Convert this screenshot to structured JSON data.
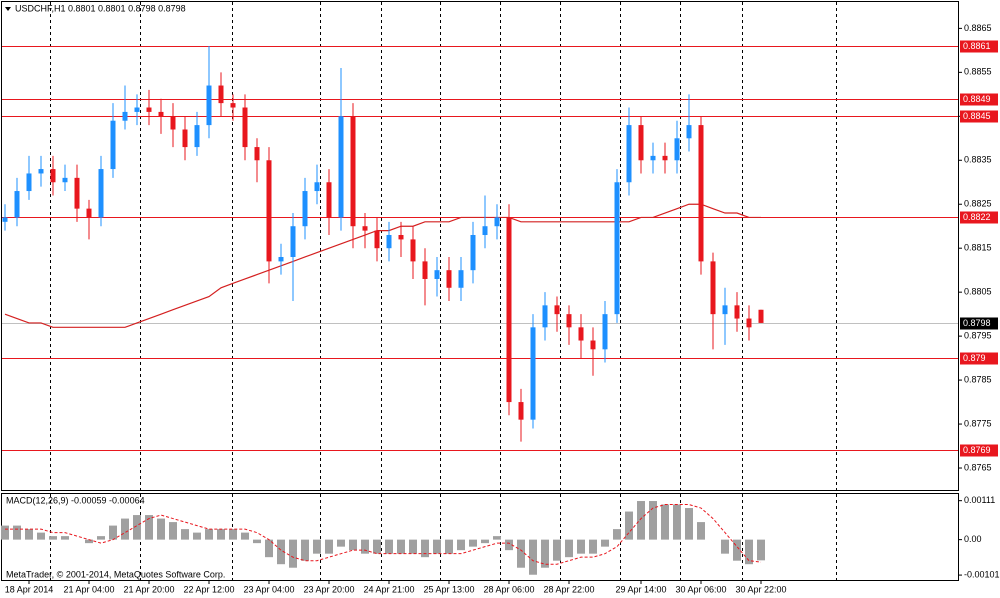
{
  "chart_data": [
    {
      "type": "candlestick",
      "title": "USDCHF,H1  0.8801 0.8801 0.8798 0.8798",
      "up_color": "#1e90ff",
      "down_color": "#e8171e",
      "open": [
        0.8821,
        0.8822,
        0.8828,
        0.8832,
        0.8833,
        0.883,
        0.8831,
        0.8824,
        0.8822,
        0.8833,
        0.8844,
        0.8846,
        0.8847,
        0.8846,
        0.8845,
        0.8842,
        0.8838,
        0.8843,
        0.8852,
        0.8848,
        0.8847,
        0.8838,
        0.8835,
        0.8812,
        0.8813,
        0.882,
        0.8828,
        0.883,
        0.8822,
        0.8845,
        0.882,
        0.8819,
        0.8815,
        0.8818,
        0.8817,
        0.8812,
        0.8808,
        0.881,
        0.8806,
        0.881,
        0.8818,
        0.882,
        0.8822,
        0.878,
        0.8776,
        0.8797,
        0.8802,
        0.88,
        0.8797,
        0.8794,
        0.8792,
        0.88,
        0.883,
        0.8843,
        0.8835,
        0.8836,
        0.8835,
        0.884,
        0.8843,
        0.8812,
        0.88,
        0.8802,
        0.8799,
        0.8801
      ],
      "high": [
        0.8825,
        0.8831,
        0.8836,
        0.8836,
        0.8836,
        0.8834,
        0.8834,
        0.8826,
        0.8836,
        0.8848,
        0.8852,
        0.885,
        0.8851,
        0.8849,
        0.8848,
        0.8845,
        0.8846,
        0.8861,
        0.8855,
        0.885,
        0.885,
        0.884,
        0.8838,
        0.8816,
        0.8823,
        0.8831,
        0.8834,
        0.8833,
        0.8856,
        0.8848,
        0.8823,
        0.8822,
        0.8821,
        0.8821,
        0.882,
        0.8815,
        0.8813,
        0.8813,
        0.8813,
        0.8821,
        0.8827,
        0.8825,
        0.8825,
        0.8783,
        0.88,
        0.8805,
        0.8804,
        0.8802,
        0.88,
        0.8797,
        0.8803,
        0.8833,
        0.8847,
        0.8845,
        0.8839,
        0.8839,
        0.8844,
        0.885,
        0.8845,
        0.8814,
        0.8806,
        0.8805,
        0.8802,
        0.8801
      ],
      "low": [
        0.8819,
        0.882,
        0.8826,
        0.8829,
        0.8827,
        0.8828,
        0.8821,
        0.8817,
        0.882,
        0.8831,
        0.8842,
        0.8843,
        0.8843,
        0.8841,
        0.8838,
        0.8835,
        0.8836,
        0.884,
        0.8845,
        0.8844,
        0.8835,
        0.883,
        0.8807,
        0.8809,
        0.8803,
        0.8817,
        0.8825,
        0.8818,
        0.8819,
        0.8815,
        0.8815,
        0.8812,
        0.8812,
        0.8813,
        0.8808,
        0.8802,
        0.8804,
        0.8803,
        0.8803,
        0.8807,
        0.8815,
        0.8817,
        0.8777,
        0.8771,
        0.8774,
        0.8794,
        0.8796,
        0.8793,
        0.879,
        0.8786,
        0.8789,
        0.8798,
        0.8827,
        0.8832,
        0.8832,
        0.8832,
        0.8832,
        0.8837,
        0.8809,
        0.8792,
        0.8793,
        0.8796,
        0.8794,
        0.8798
      ],
      "close": [
        0.8822,
        0.8828,
        0.8832,
        0.8833,
        0.883,
        0.8831,
        0.8824,
        0.8822,
        0.8833,
        0.8844,
        0.8846,
        0.8847,
        0.8846,
        0.8845,
        0.8842,
        0.8838,
        0.8843,
        0.8852,
        0.8848,
        0.8847,
        0.8838,
        0.8835,
        0.8812,
        0.8813,
        0.882,
        0.8828,
        0.883,
        0.8822,
        0.8845,
        0.882,
        0.8819,
        0.8815,
        0.8818,
        0.8817,
        0.8812,
        0.8808,
        0.881,
        0.8806,
        0.881,
        0.8818,
        0.882,
        0.8822,
        0.878,
        0.8776,
        0.8797,
        0.8802,
        0.88,
        0.8797,
        0.8794,
        0.8792,
        0.88,
        0.883,
        0.8843,
        0.8835,
        0.8836,
        0.8835,
        0.884,
        0.8843,
        0.8812,
        0.88,
        0.8802,
        0.8799,
        0.8797,
        0.8798
      ],
      "ma": {
        "color": "#d42020",
        "values": [
          0.88,
          0.8799,
          0.8798,
          0.8798,
          0.8797,
          0.8797,
          0.8797,
          0.8797,
          0.8797,
          0.8797,
          0.8797,
          0.8798,
          0.8799,
          0.88,
          0.8801,
          0.8802,
          0.8803,
          0.8804,
          0.8806,
          0.8807,
          0.8808,
          0.8809,
          0.881,
          0.8811,
          0.8812,
          0.8813,
          0.8814,
          0.8815,
          0.8816,
          0.8817,
          0.8818,
          0.8819,
          0.8819,
          0.882,
          0.882,
          0.8821,
          0.8821,
          0.8821,
          0.8822,
          0.8822,
          0.8822,
          0.8822,
          0.8822,
          0.8821,
          0.8821,
          0.8821,
          0.8821,
          0.8821,
          0.8821,
          0.8821,
          0.8821,
          0.8821,
          0.8821,
          0.8822,
          0.8822,
          0.8823,
          0.8824,
          0.8825,
          0.8825,
          0.8824,
          0.8823,
          0.8823,
          0.8822,
          0.8822
        ]
      },
      "levels": {
        "color": "#e8171e",
        "values": [
          0.8861,
          0.8849,
          0.8845,
          0.8822,
          0.879,
          0.8769
        ]
      },
      "last_price": 0.8798,
      "ylim": [
        0.876,
        0.8871
      ],
      "yticks": [
        0.8865,
        0.8855,
        0.8845,
        0.8835,
        0.8825,
        0.8815,
        0.8805,
        0.8795,
        0.8785,
        0.8775,
        0.8765
      ],
      "xticks": [
        {
          "value": 2,
          "label": "18 Apr 2014"
        },
        {
          "value": 7,
          "label": "21 Apr 04:00"
        },
        {
          "value": 12,
          "label": "21 Apr 20:00"
        },
        {
          "value": 17,
          "label": "22 Apr 12:00"
        },
        {
          "value": 22,
          "label": "23 Apr 04:00"
        },
        {
          "value": 27,
          "label": "23 Apr 20:00"
        },
        {
          "value": 32,
          "label": "24 Apr 21:00"
        },
        {
          "value": 37,
          "label": "25 Apr 13:00"
        },
        {
          "value": 42,
          "label": "28 Apr 06:00"
        },
        {
          "value": 47,
          "label": "28 Apr 22:00"
        },
        {
          "value": 53,
          "label": "29 Apr 14:00"
        },
        {
          "value": 58,
          "label": "30 Apr 06:00"
        },
        {
          "value": 63,
          "label": "30 Apr 22:00"
        }
      ]
    },
    {
      "type": "macd",
      "title": "MACD(12,26,9) -0.00059 -0.00064",
      "footer": "MetaTrader, © 2001-2014, MetaQuotes Software Corp.",
      "series": [
        {
          "name": "MACD",
          "color": "#a0a0a0",
          "values": [
            0.0004,
            0.0004,
            0.0003,
            0.0002,
            0.0001,
            0.0001,
            0.0,
            -0.0001,
            0.0001,
            0.0004,
            0.0006,
            0.0007,
            0.0007,
            0.0006,
            0.0005,
            0.0003,
            0.0002,
            0.0003,
            0.0003,
            0.0003,
            0.0002,
            -0.0001,
            -0.0005,
            -0.0007,
            -0.0008,
            -0.0006,
            -0.0004,
            -0.0004,
            -0.0002,
            -0.0003,
            -0.0004,
            -0.0004,
            -0.0004,
            -0.0004,
            -0.0004,
            -0.0005,
            -0.0004,
            -0.0004,
            -0.0003,
            -0.0002,
            -0.0001,
            0.0001,
            -0.0003,
            -0.0008,
            -0.001,
            -0.0008,
            -0.0006,
            -0.0005,
            -0.0004,
            -0.0004,
            -0.0002,
            0.0003,
            0.0008,
            0.0011,
            0.0011,
            0.001,
            0.001,
            0.0009,
            0.0005,
            0.0,
            -0.0004,
            -0.0006,
            -0.0007,
            -0.00059
          ]
        },
        {
          "name": "Signal",
          "color": "#e8171e",
          "values": [
            0.0003,
            0.0003,
            0.0003,
            0.0003,
            0.0002,
            0.0002,
            0.0001,
            0.0,
            -0.0001,
            0.0,
            0.0002,
            0.0004,
            0.0006,
            0.0007,
            0.0006,
            0.0005,
            0.0004,
            0.0003,
            0.0003,
            0.0003,
            0.0003,
            0.0002,
            0.0,
            -0.0003,
            -0.0005,
            -0.0006,
            -0.0006,
            -0.0005,
            -0.0004,
            -0.0003,
            -0.0003,
            -0.0004,
            -0.0004,
            -0.0004,
            -0.0004,
            -0.0004,
            -0.0004,
            -0.0004,
            -0.0004,
            -0.0003,
            -0.0002,
            -0.0001,
            -0.0001,
            -0.0003,
            -0.0006,
            -0.0007,
            -0.0007,
            -0.0006,
            -0.0005,
            -0.0005,
            -0.0004,
            -0.0002,
            0.0002,
            0.0006,
            0.0009,
            0.001,
            0.001,
            0.001,
            0.0009,
            0.0006,
            0.0002,
            -0.0002,
            -0.0006,
            -0.00064
          ]
        }
      ],
      "ylim": [
        -0.00115,
        0.0013
      ],
      "yticks": [
        0.00111,
        {
          "value": 0,
          "label": "0.00"
        },
        -0.00101
      ]
    }
  ]
}
